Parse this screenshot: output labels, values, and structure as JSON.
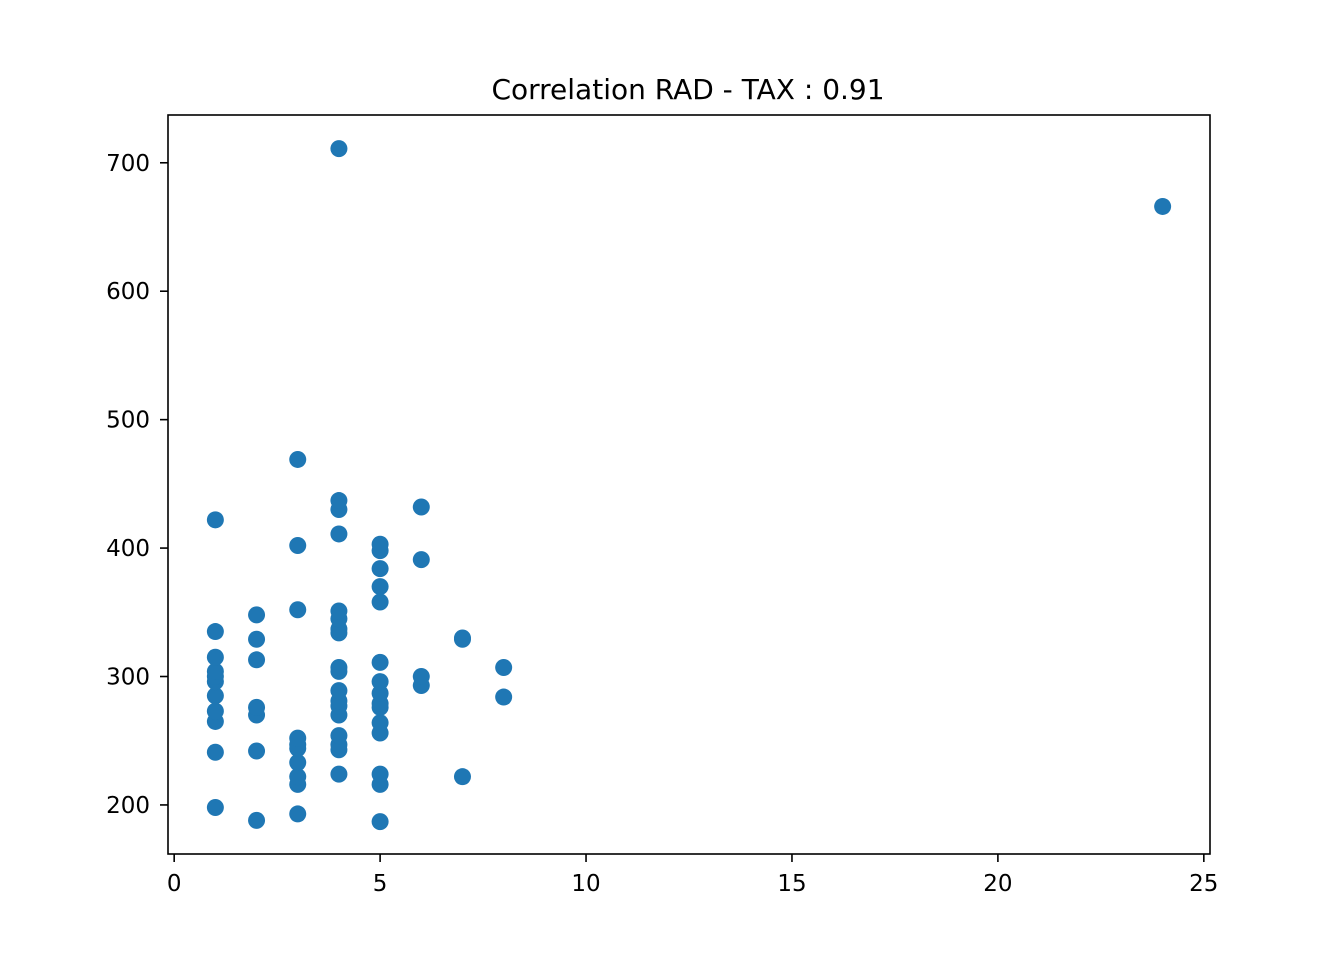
{
  "chart_data": {
    "type": "scatter",
    "title": "Correlation RAD - TAX : 0.91",
    "xlabel": "",
    "ylabel": "",
    "xlim": [
      -0.15,
      25.15
    ],
    "ylim": [
      161.8,
      737.2
    ],
    "x_ticks": [
      0,
      5,
      10,
      15,
      20,
      25
    ],
    "y_ticks": [
      200,
      300,
      400,
      500,
      600,
      700
    ],
    "grid": false,
    "marker_color": "#1f77b4",
    "series": [
      {
        "name": "",
        "points": [
          {
            "x": 1,
            "y": 198
          },
          {
            "x": 1,
            "y": 241
          },
          {
            "x": 1,
            "y": 265
          },
          {
            "x": 1,
            "y": 273
          },
          {
            "x": 1,
            "y": 285
          },
          {
            "x": 1,
            "y": 296
          },
          {
            "x": 1,
            "y": 300
          },
          {
            "x": 1,
            "y": 304
          },
          {
            "x": 1,
            "y": 315
          },
          {
            "x": 1,
            "y": 335
          },
          {
            "x": 1,
            "y": 422
          },
          {
            "x": 2,
            "y": 188
          },
          {
            "x": 2,
            "y": 242
          },
          {
            "x": 2,
            "y": 270
          },
          {
            "x": 2,
            "y": 276
          },
          {
            "x": 2,
            "y": 313
          },
          {
            "x": 2,
            "y": 329
          },
          {
            "x": 2,
            "y": 348
          },
          {
            "x": 3,
            "y": 193
          },
          {
            "x": 3,
            "y": 216
          },
          {
            "x": 3,
            "y": 222
          },
          {
            "x": 3,
            "y": 233
          },
          {
            "x": 3,
            "y": 244
          },
          {
            "x": 3,
            "y": 247
          },
          {
            "x": 3,
            "y": 252
          },
          {
            "x": 3,
            "y": 352
          },
          {
            "x": 3,
            "y": 402
          },
          {
            "x": 3,
            "y": 469
          },
          {
            "x": 4,
            "y": 224
          },
          {
            "x": 4,
            "y": 243
          },
          {
            "x": 4,
            "y": 247
          },
          {
            "x": 4,
            "y": 254
          },
          {
            "x": 4,
            "y": 270
          },
          {
            "x": 4,
            "y": 277
          },
          {
            "x": 4,
            "y": 281
          },
          {
            "x": 4,
            "y": 289
          },
          {
            "x": 4,
            "y": 304
          },
          {
            "x": 4,
            "y": 307
          },
          {
            "x": 4,
            "y": 334
          },
          {
            "x": 4,
            "y": 337
          },
          {
            "x": 4,
            "y": 345
          },
          {
            "x": 4,
            "y": 351
          },
          {
            "x": 4,
            "y": 411
          },
          {
            "x": 4,
            "y": 430
          },
          {
            "x": 4,
            "y": 437
          },
          {
            "x": 4,
            "y": 711
          },
          {
            "x": 5,
            "y": 187
          },
          {
            "x": 5,
            "y": 216
          },
          {
            "x": 5,
            "y": 224
          },
          {
            "x": 5,
            "y": 256
          },
          {
            "x": 5,
            "y": 264
          },
          {
            "x": 5,
            "y": 276
          },
          {
            "x": 5,
            "y": 279
          },
          {
            "x": 5,
            "y": 287
          },
          {
            "x": 5,
            "y": 296
          },
          {
            "x": 5,
            "y": 311
          },
          {
            "x": 5,
            "y": 358
          },
          {
            "x": 5,
            "y": 370
          },
          {
            "x": 5,
            "y": 384
          },
          {
            "x": 5,
            "y": 398
          },
          {
            "x": 5,
            "y": 403
          },
          {
            "x": 6,
            "y": 293
          },
          {
            "x": 6,
            "y": 300
          },
          {
            "x": 6,
            "y": 391
          },
          {
            "x": 6,
            "y": 432
          },
          {
            "x": 7,
            "y": 222
          },
          {
            "x": 7,
            "y": 329
          },
          {
            "x": 7,
            "y": 330
          },
          {
            "x": 8,
            "y": 284
          },
          {
            "x": 8,
            "y": 307
          },
          {
            "x": 24,
            "y": 666
          }
        ]
      }
    ]
  }
}
